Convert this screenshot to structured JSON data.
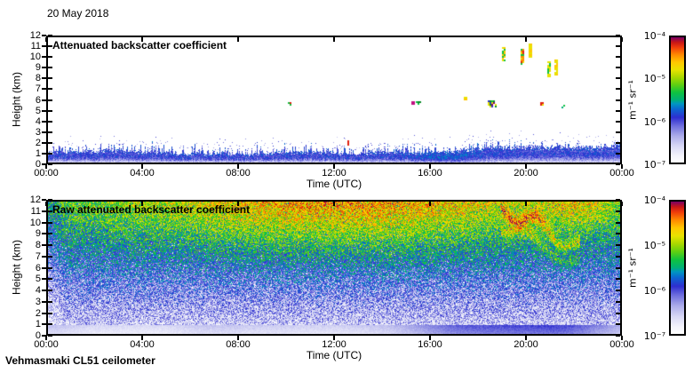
{
  "figure": {
    "date": "20 May 2018",
    "footer": "Vehmasmaki CL51 ceilometer",
    "background": "#ffffff",
    "axis_color": "#000000"
  },
  "colormap": {
    "gradient_stops": [
      {
        "t": 0.0,
        "c": "#ffffff"
      },
      {
        "t": 0.06,
        "c": "#f2f2fb"
      },
      {
        "t": 0.13,
        "c": "#d8d8f5"
      },
      {
        "t": 0.21,
        "c": "#adadea"
      },
      {
        "t": 0.29,
        "c": "#7070dd"
      },
      {
        "t": 0.36,
        "c": "#2e2ed0"
      },
      {
        "t": 0.43,
        "c": "#0a6ad0"
      },
      {
        "t": 0.47,
        "c": "#0096c0"
      },
      {
        "t": 0.5,
        "c": "#00b077"
      },
      {
        "t": 0.56,
        "c": "#0fc23f"
      },
      {
        "t": 0.62,
        "c": "#5ecf12"
      },
      {
        "t": 0.68,
        "c": "#a8d800"
      },
      {
        "t": 0.74,
        "c": "#e8e300"
      },
      {
        "t": 0.8,
        "c": "#ffc800"
      },
      {
        "t": 0.86,
        "c": "#ff8a00"
      },
      {
        "t": 0.92,
        "c": "#f03c0a"
      },
      {
        "t": 0.96,
        "c": "#c81616"
      },
      {
        "t": 1.0,
        "c": "#7a0066"
      }
    ]
  },
  "chart_data": [
    {
      "type": "heatmap",
      "title": "Attenuated backscatter coefficient",
      "xlabel": "Time (UTC)",
      "ylabel": "Height (km)",
      "x_ticks": [
        "00:00",
        "04:00",
        "08:00",
        "12:00",
        "16:00",
        "20:00",
        "00:00"
      ],
      "x_tick_hours": [
        0,
        4,
        8,
        12,
        16,
        20,
        24
      ],
      "y_ticks": [
        12,
        11,
        10,
        9,
        8,
        7,
        6,
        5,
        4,
        3,
        2,
        1,
        0
      ],
      "x_range_hours": [
        0,
        24
      ],
      "y_range_km": [
        0,
        12
      ],
      "grid": false,
      "colorbar": {
        "scale": "log",
        "ticks": [
          "10⁻⁴",
          "10⁻⁵",
          "10⁻⁶",
          "10⁻⁷"
        ],
        "units": "m⁻¹ sr⁻¹"
      },
      "features": {
        "boundary_layer": {
          "description": "blue aerosol boundary layer along the surface",
          "height_km_typical": [
            0,
            1.3
          ],
          "height_km_max": 2.2,
          "enhanced_times_hours": [
            [
              16.0,
              21.5
            ],
            [
              23.0,
              24.0
            ]
          ]
        },
        "points": [
          {
            "time_h": 10.1,
            "km": [
              5.5,
              5.8
            ],
            "w": 3,
            "colors": [
              "#e02010",
              "#0fc23f"
            ]
          },
          {
            "time_h": 12.6,
            "km": [
              1.7,
              2.1
            ],
            "w": 2,
            "colors": [
              "#e02010",
              "#2e2ed0"
            ]
          },
          {
            "time_h": 15.3,
            "km": [
              5.6,
              5.9
            ],
            "w": 3,
            "colors": [
              "#c01080",
              "#e02010"
            ]
          },
          {
            "time_h": 15.55,
            "km": [
              5.7,
              5.9
            ],
            "w": 6,
            "colors": [
              "#0a8a28",
              "#0fc23f"
            ]
          },
          {
            "time_h": 17.5,
            "km": [
              6.0,
              6.3
            ],
            "w": 4,
            "colors": [
              "#e8e300",
              "#ffc800"
            ]
          },
          {
            "time_h": 18.6,
            "km": [
              5.4,
              6.0
            ],
            "w": 9,
            "colors": [
              "#0a8a28",
              "#7a0066",
              "#e8e300",
              "#e02010",
              "#2e2ed0",
              "#0fc23f"
            ]
          },
          {
            "time_h": 19.1,
            "km": [
              9.9,
              11.1
            ],
            "w": 3,
            "colors": [
              "#e8e300",
              "#0fc23f",
              "#ffc800"
            ]
          },
          {
            "time_h": 19.9,
            "km": [
              9.4,
              10.9
            ],
            "w": 4,
            "colors": [
              "#ff8a00",
              "#e8e300",
              "#0fc23f",
              "#e02010"
            ]
          },
          {
            "time_h": 20.2,
            "km": [
              10.2,
              11.4
            ],
            "w": 3,
            "colors": [
              "#e8e300",
              "#ffc800"
            ]
          },
          {
            "time_h": 20.7,
            "km": [
              5.5,
              5.8
            ],
            "w": 3,
            "colors": [
              "#2e2ed0",
              "#e8e300",
              "#e02010"
            ]
          },
          {
            "time_h": 21.0,
            "km": [
              8.3,
              9.7
            ],
            "w": 3,
            "colors": [
              "#e8e300",
              "#0fc23f"
            ]
          },
          {
            "time_h": 21.3,
            "km": [
              8.5,
              9.9
            ],
            "w": 3,
            "colors": [
              "#ffc800",
              "#e8e300"
            ]
          },
          {
            "time_h": 21.6,
            "km": [
              5.3,
              5.5
            ],
            "w": 4,
            "colors": [
              "#0fc23f",
              "#00b077"
            ]
          }
        ]
      }
    },
    {
      "type": "heatmap",
      "title": "Raw attenuated backscatter coefficient",
      "xlabel": "Time (UTC)",
      "ylabel": "Height (km)",
      "x_ticks": [
        "00:00",
        "04:00",
        "08:00",
        "12:00",
        "16:00",
        "20:00",
        "00:00"
      ],
      "x_tick_hours": [
        0,
        4,
        8,
        12,
        16,
        20,
        24
      ],
      "y_ticks": [
        12,
        11,
        10,
        9,
        8,
        7,
        6,
        5,
        4,
        3,
        2,
        1,
        0
      ],
      "x_range_hours": [
        0,
        24
      ],
      "y_range_km": [
        0,
        12
      ],
      "grid": false,
      "colorbar": {
        "scale": "log",
        "ticks": [
          "10⁻⁴",
          "10⁻⁵",
          "10⁻⁶",
          "10⁻⁷"
        ],
        "units": "m⁻¹ sr⁻¹"
      },
      "features": {
        "background_noise": "dense speckle field; values increase with altitude (blue near surface to green aloft)",
        "hot_region": {
          "time_hours": [
            7,
            18
          ],
          "height_km": [
            8,
            12
          ],
          "colors": "yellow-orange-red"
        },
        "descending_streaks": {
          "time_hours": [
            19,
            22.3
          ],
          "height_km": [
            6.5,
            11.5
          ],
          "colors": "yellow-orange"
        },
        "clean_surface_band": {
          "height_km": [
            0,
            0.9
          ]
        },
        "white_speckle_zone": {
          "height_km": [
            0.5,
            6
          ]
        },
        "surface_blue_patches_time_hours": [
          [
            15.5,
            19.0
          ],
          [
            19.0,
            23.5
          ]
        ]
      }
    }
  ]
}
